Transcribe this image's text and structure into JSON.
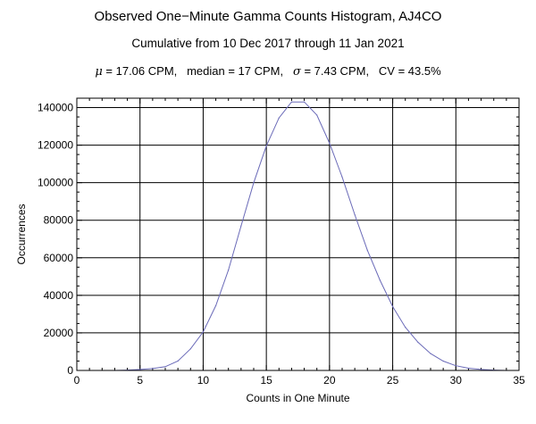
{
  "chart_data": {
    "type": "line",
    "title": "Observed One−Minute Gamma Counts Histogram, AJ4CO",
    "subtitle": "Cumulative from 10 Dec 2017 through 11 Jan 2021",
    "stats": {
      "mu_symbol": "μ",
      "mu_text": " = 17.06 CPM,   median = 17 CPM,   ",
      "sigma_symbol": "σ",
      "sigma_text": " = 7.43 CPM,   CV = 43.5%"
    },
    "xlabel": "Counts in One Minute",
    "ylabel": "Occurrences",
    "xlim": [
      0,
      35
    ],
    "ylim": [
      0,
      145000
    ],
    "xticks": [
      0,
      5,
      10,
      15,
      20,
      25,
      30,
      35
    ],
    "yticks": [
      0,
      20000,
      40000,
      60000,
      80000,
      100000,
      120000,
      140000
    ],
    "grid": true,
    "line_color": "#6a6ab8",
    "series": [
      {
        "x": [
          3,
          4,
          5,
          6,
          7,
          8,
          9,
          10,
          11,
          12,
          13,
          14,
          15,
          16,
          17,
          18,
          19,
          20,
          21,
          22,
          23,
          24,
          25,
          26,
          27,
          28,
          29,
          30,
          31,
          32,
          33,
          34
        ],
        "values": [
          0,
          200,
          500,
          1000,
          2000,
          5000,
          11500,
          20500,
          34500,
          53500,
          77000,
          100000,
          119500,
          134500,
          143000,
          143000,
          136000,
          121000,
          103000,
          83000,
          64000,
          48000,
          34000,
          23000,
          15000,
          9000,
          5000,
          2500,
          1200,
          500,
          200,
          0
        ]
      }
    ]
  }
}
